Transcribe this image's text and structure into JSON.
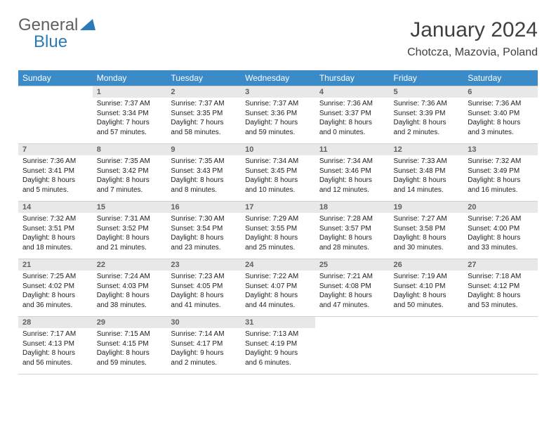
{
  "logo": {
    "text1": "General",
    "text2": "Blue",
    "color1": "#606060",
    "color2": "#2a7ab8",
    "shape_color": "#2a7ab8"
  },
  "header": {
    "month": "January 2024",
    "location": "Chotcza, Mazovia, Poland"
  },
  "weekdays": [
    "Sunday",
    "Monday",
    "Tuesday",
    "Wednesday",
    "Thursday",
    "Friday",
    "Saturday"
  ],
  "colors": {
    "header_bg": "#3b8bc8",
    "header_text": "#ffffff",
    "daynum_bg": "#e8e8e8",
    "border": "#d0d0d0"
  },
  "weeks": [
    [
      {
        "n": "",
        "sunrise": "",
        "sunset": "",
        "daylight": ""
      },
      {
        "n": "1",
        "sunrise": "Sunrise: 7:37 AM",
        "sunset": "Sunset: 3:34 PM",
        "daylight": "Daylight: 7 hours and 57 minutes."
      },
      {
        "n": "2",
        "sunrise": "Sunrise: 7:37 AM",
        "sunset": "Sunset: 3:35 PM",
        "daylight": "Daylight: 7 hours and 58 minutes."
      },
      {
        "n": "3",
        "sunrise": "Sunrise: 7:37 AM",
        "sunset": "Sunset: 3:36 PM",
        "daylight": "Daylight: 7 hours and 59 minutes."
      },
      {
        "n": "4",
        "sunrise": "Sunrise: 7:36 AM",
        "sunset": "Sunset: 3:37 PM",
        "daylight": "Daylight: 8 hours and 0 minutes."
      },
      {
        "n": "5",
        "sunrise": "Sunrise: 7:36 AM",
        "sunset": "Sunset: 3:39 PM",
        "daylight": "Daylight: 8 hours and 2 minutes."
      },
      {
        "n": "6",
        "sunrise": "Sunrise: 7:36 AM",
        "sunset": "Sunset: 3:40 PM",
        "daylight": "Daylight: 8 hours and 3 minutes."
      }
    ],
    [
      {
        "n": "7",
        "sunrise": "Sunrise: 7:36 AM",
        "sunset": "Sunset: 3:41 PM",
        "daylight": "Daylight: 8 hours and 5 minutes."
      },
      {
        "n": "8",
        "sunrise": "Sunrise: 7:35 AM",
        "sunset": "Sunset: 3:42 PM",
        "daylight": "Daylight: 8 hours and 7 minutes."
      },
      {
        "n": "9",
        "sunrise": "Sunrise: 7:35 AM",
        "sunset": "Sunset: 3:43 PM",
        "daylight": "Daylight: 8 hours and 8 minutes."
      },
      {
        "n": "10",
        "sunrise": "Sunrise: 7:34 AM",
        "sunset": "Sunset: 3:45 PM",
        "daylight": "Daylight: 8 hours and 10 minutes."
      },
      {
        "n": "11",
        "sunrise": "Sunrise: 7:34 AM",
        "sunset": "Sunset: 3:46 PM",
        "daylight": "Daylight: 8 hours and 12 minutes."
      },
      {
        "n": "12",
        "sunrise": "Sunrise: 7:33 AM",
        "sunset": "Sunset: 3:48 PM",
        "daylight": "Daylight: 8 hours and 14 minutes."
      },
      {
        "n": "13",
        "sunrise": "Sunrise: 7:32 AM",
        "sunset": "Sunset: 3:49 PM",
        "daylight": "Daylight: 8 hours and 16 minutes."
      }
    ],
    [
      {
        "n": "14",
        "sunrise": "Sunrise: 7:32 AM",
        "sunset": "Sunset: 3:51 PM",
        "daylight": "Daylight: 8 hours and 18 minutes."
      },
      {
        "n": "15",
        "sunrise": "Sunrise: 7:31 AM",
        "sunset": "Sunset: 3:52 PM",
        "daylight": "Daylight: 8 hours and 21 minutes."
      },
      {
        "n": "16",
        "sunrise": "Sunrise: 7:30 AM",
        "sunset": "Sunset: 3:54 PM",
        "daylight": "Daylight: 8 hours and 23 minutes."
      },
      {
        "n": "17",
        "sunrise": "Sunrise: 7:29 AM",
        "sunset": "Sunset: 3:55 PM",
        "daylight": "Daylight: 8 hours and 25 minutes."
      },
      {
        "n": "18",
        "sunrise": "Sunrise: 7:28 AM",
        "sunset": "Sunset: 3:57 PM",
        "daylight": "Daylight: 8 hours and 28 minutes."
      },
      {
        "n": "19",
        "sunrise": "Sunrise: 7:27 AM",
        "sunset": "Sunset: 3:58 PM",
        "daylight": "Daylight: 8 hours and 30 minutes."
      },
      {
        "n": "20",
        "sunrise": "Sunrise: 7:26 AM",
        "sunset": "Sunset: 4:00 PM",
        "daylight": "Daylight: 8 hours and 33 minutes."
      }
    ],
    [
      {
        "n": "21",
        "sunrise": "Sunrise: 7:25 AM",
        "sunset": "Sunset: 4:02 PM",
        "daylight": "Daylight: 8 hours and 36 minutes."
      },
      {
        "n": "22",
        "sunrise": "Sunrise: 7:24 AM",
        "sunset": "Sunset: 4:03 PM",
        "daylight": "Daylight: 8 hours and 38 minutes."
      },
      {
        "n": "23",
        "sunrise": "Sunrise: 7:23 AM",
        "sunset": "Sunset: 4:05 PM",
        "daylight": "Daylight: 8 hours and 41 minutes."
      },
      {
        "n": "24",
        "sunrise": "Sunrise: 7:22 AM",
        "sunset": "Sunset: 4:07 PM",
        "daylight": "Daylight: 8 hours and 44 minutes."
      },
      {
        "n": "25",
        "sunrise": "Sunrise: 7:21 AM",
        "sunset": "Sunset: 4:08 PM",
        "daylight": "Daylight: 8 hours and 47 minutes."
      },
      {
        "n": "26",
        "sunrise": "Sunrise: 7:19 AM",
        "sunset": "Sunset: 4:10 PM",
        "daylight": "Daylight: 8 hours and 50 minutes."
      },
      {
        "n": "27",
        "sunrise": "Sunrise: 7:18 AM",
        "sunset": "Sunset: 4:12 PM",
        "daylight": "Daylight: 8 hours and 53 minutes."
      }
    ],
    [
      {
        "n": "28",
        "sunrise": "Sunrise: 7:17 AM",
        "sunset": "Sunset: 4:13 PM",
        "daylight": "Daylight: 8 hours and 56 minutes."
      },
      {
        "n": "29",
        "sunrise": "Sunrise: 7:15 AM",
        "sunset": "Sunset: 4:15 PM",
        "daylight": "Daylight: 8 hours and 59 minutes."
      },
      {
        "n": "30",
        "sunrise": "Sunrise: 7:14 AM",
        "sunset": "Sunset: 4:17 PM",
        "daylight": "Daylight: 9 hours and 2 minutes."
      },
      {
        "n": "31",
        "sunrise": "Sunrise: 7:13 AM",
        "sunset": "Sunset: 4:19 PM",
        "daylight": "Daylight: 9 hours and 6 minutes."
      },
      {
        "n": "",
        "sunrise": "",
        "sunset": "",
        "daylight": ""
      },
      {
        "n": "",
        "sunrise": "",
        "sunset": "",
        "daylight": ""
      },
      {
        "n": "",
        "sunrise": "",
        "sunset": "",
        "daylight": ""
      }
    ]
  ]
}
